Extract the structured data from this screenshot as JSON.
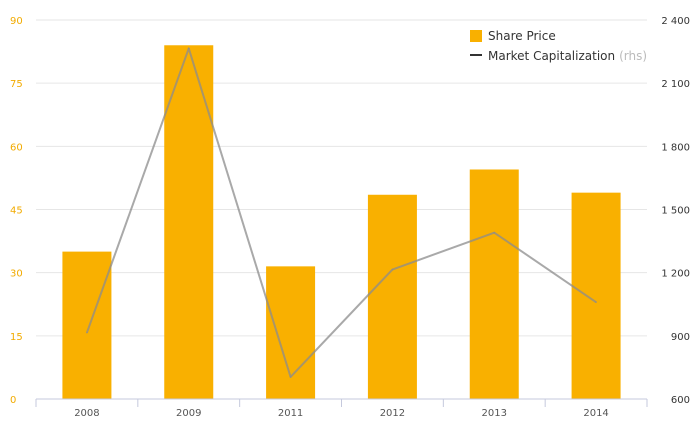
{
  "chart_data": {
    "type": "bar",
    "categories": [
      "2008",
      "2009",
      "2011",
      "2012",
      "2013",
      "2014"
    ],
    "series": [
      {
        "name": "Share Price",
        "type": "bar",
        "axis": "left",
        "color": "#f9b000",
        "values": [
          35,
          84,
          31.5,
          48.5,
          54.5,
          49
        ]
      },
      {
        "name": "Market Capitalization",
        "name_suffix": "(rhs)",
        "type": "line",
        "axis": "right",
        "color": "#a6a6a6",
        "values": [
          915,
          2265,
          705,
          1215,
          1390,
          1060
        ]
      }
    ],
    "y_left": {
      "ticks": [
        "0",
        "15",
        "30",
        "45",
        "60",
        "75",
        "90"
      ],
      "ylim": [
        0,
        90
      ]
    },
    "y_right": {
      "ticks": [
        "600",
        "900",
        "1 200",
        "1 500",
        "1 800",
        "2 100",
        "2 400"
      ],
      "ylim": [
        600,
        2400
      ]
    },
    "grid": true,
    "legend_position": "top-right"
  }
}
